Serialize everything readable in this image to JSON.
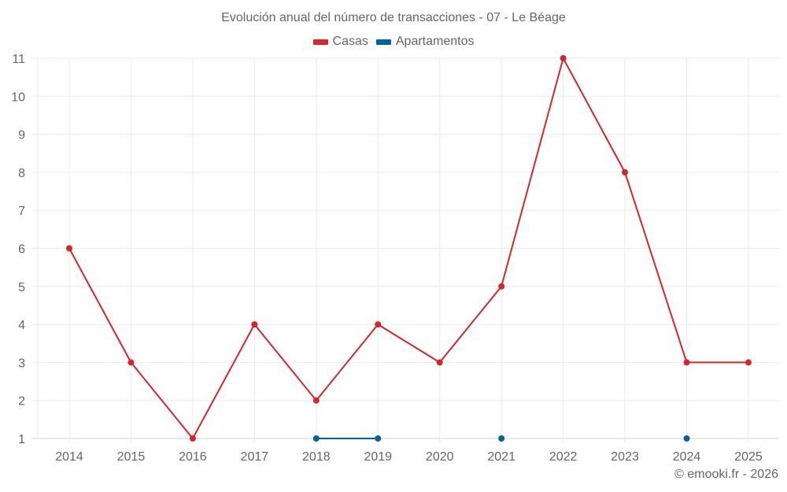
{
  "chart_data": {
    "type": "line",
    "title": "Evolución anual del número de transacciones - 07 - Le Béage",
    "xlabel": "",
    "ylabel": "",
    "categories": [
      "2014",
      "2015",
      "2016",
      "2017",
      "2018",
      "2019",
      "2020",
      "2021",
      "2022",
      "2023",
      "2024",
      "2025"
    ],
    "series": [
      {
        "name": "Casas",
        "color": "#d7262b",
        "values": [
          6,
          3,
          1,
          4,
          2,
          4,
          3,
          5,
          11,
          8,
          3,
          3
        ]
      },
      {
        "name": "Apartamentos",
        "color": "#00649f",
        "values": [
          null,
          null,
          null,
          null,
          1,
          1,
          null,
          1,
          null,
          null,
          1,
          null
        ]
      }
    ],
    "ylim": [
      1,
      11
    ],
    "yticks": [
      1,
      2,
      3,
      4,
      5,
      6,
      7,
      8,
      9,
      10,
      11
    ],
    "grid": true,
    "legend_position": "top"
  },
  "header": {
    "title": "Evolución anual del número de transacciones - 07 - Le Béage"
  },
  "legend": {
    "items": [
      {
        "label": "Casas",
        "color": "#d7262b"
      },
      {
        "label": "Apartamentos",
        "color": "#00649f"
      }
    ]
  },
  "footer": {
    "credit": "© emooki.fr - 2026"
  }
}
